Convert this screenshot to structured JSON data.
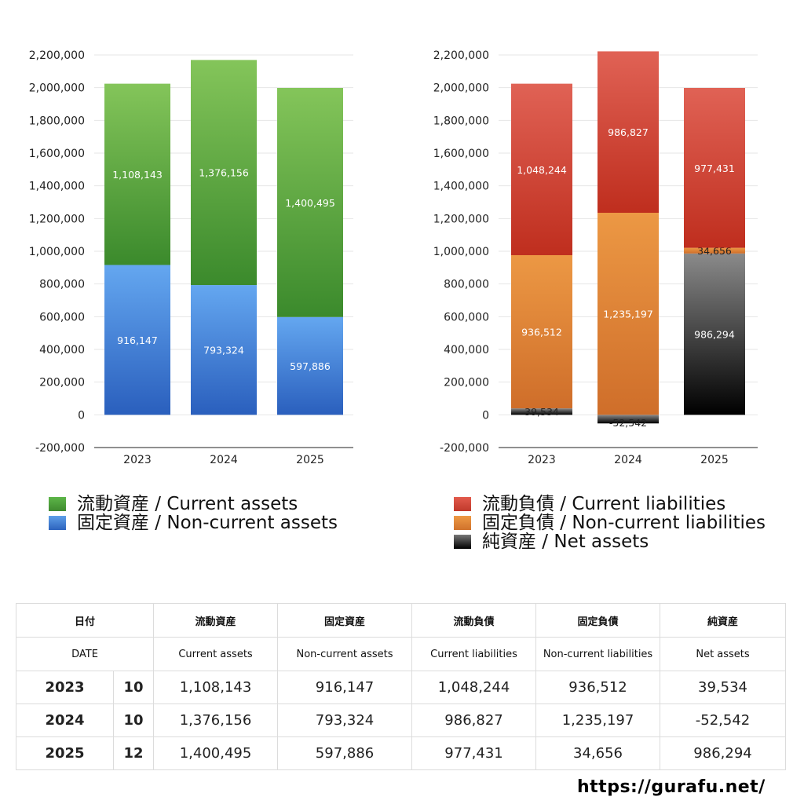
{
  "chart_data": [
    {
      "type": "bar",
      "stacked": true,
      "categories": [
        "2023",
        "2024",
        "2025"
      ],
      "ylim": [
        -200000,
        2200000
      ],
      "yticks": [
        "2,200,000",
        "2,000,000",
        "1,800,000",
        "1,600,000",
        "1,400,000",
        "1,200,000",
        "1,000,000",
        "800,000",
        "600,000",
        "400,000",
        "200,000",
        "0",
        "-200,000"
      ],
      "grid": true,
      "legend_position": "bottom",
      "series": [
        {
          "name": "固定資産 / Non-current assets",
          "values": [
            916147,
            793324,
            597886
          ],
          "labels": [
            "916,147",
            "793,324",
            "597,886"
          ],
          "color": "#3d7ed6"
        },
        {
          "name": "流動資産 / Current assets",
          "values": [
            1108143,
            1376156,
            1400495
          ],
          "labels": [
            "1,108,143",
            "1,376,156",
            "1,400,495"
          ],
          "color": "#52a23f"
        }
      ]
    },
    {
      "type": "bar",
      "stacked": true,
      "categories": [
        "2023",
        "2024",
        "2025"
      ],
      "ylim": [
        -200000,
        2200000
      ],
      "yticks": [
        "2,200,000",
        "2,000,000",
        "1,800,000",
        "1,600,000",
        "1,400,000",
        "1,200,000",
        "1,000,000",
        "800,000",
        "600,000",
        "400,000",
        "200,000",
        "0",
        "-200,000"
      ],
      "grid": true,
      "legend_position": "bottom",
      "series": [
        {
          "name": "純資産 / Net assets",
          "values": [
            39534,
            -52542,
            986294
          ],
          "labels": [
            "39,534",
            "-52,542",
            "986,294"
          ],
          "color": "#3a3a3a"
        },
        {
          "name": "固定負債 / Non-current liabilities",
          "values": [
            936512,
            1235197,
            34656
          ],
          "labels": [
            "936,512",
            "1,235,197",
            "34,656"
          ],
          "color": "#e0843a"
        },
        {
          "name": "流動負債 / Current liabilities",
          "values": [
            1048244,
            986827,
            977431
          ],
          "labels": [
            "1,048,244",
            "986,827",
            "977,431"
          ],
          "color": "#d2493a"
        }
      ]
    }
  ],
  "legend_left": [
    {
      "label": "流動資産 / Current assets",
      "color": "#4f9e3c"
    },
    {
      "label": "固定資産 / Non-current assets",
      "color": "#3b7bd4"
    }
  ],
  "legend_right": [
    {
      "label": "流動負債 / Current liabilities",
      "color": "#d2493a"
    },
    {
      "label": "固定負債 / Non-current liabilities",
      "color": "#e0843a"
    },
    {
      "label": "純資産 / Net assets",
      "color": "#2a2a2a"
    }
  ],
  "table": {
    "header_jp": [
      "日付",
      "流動資産",
      "固定資産",
      "流動負債",
      "固定負債",
      "純資産"
    ],
    "header_en": [
      "DATE",
      "Current assets",
      "Non-current assets",
      "Current liabilities",
      "Non-current liabilities",
      "Net assets"
    ],
    "rows": [
      {
        "year": "2023",
        "month": "10",
        "values": [
          "1,108,143",
          "916,147",
          "1,048,244",
          "936,512",
          "39,534"
        ]
      },
      {
        "year": "2024",
        "month": "10",
        "values": [
          "1,376,156",
          "793,324",
          "986,827",
          "1,235,197",
          "-52,542"
        ]
      },
      {
        "year": "2025",
        "month": "12",
        "values": [
          "1,400,495",
          "597,886",
          "977,431",
          "34,656",
          "986,294"
        ]
      }
    ]
  },
  "source": "https://gurafu.net/"
}
